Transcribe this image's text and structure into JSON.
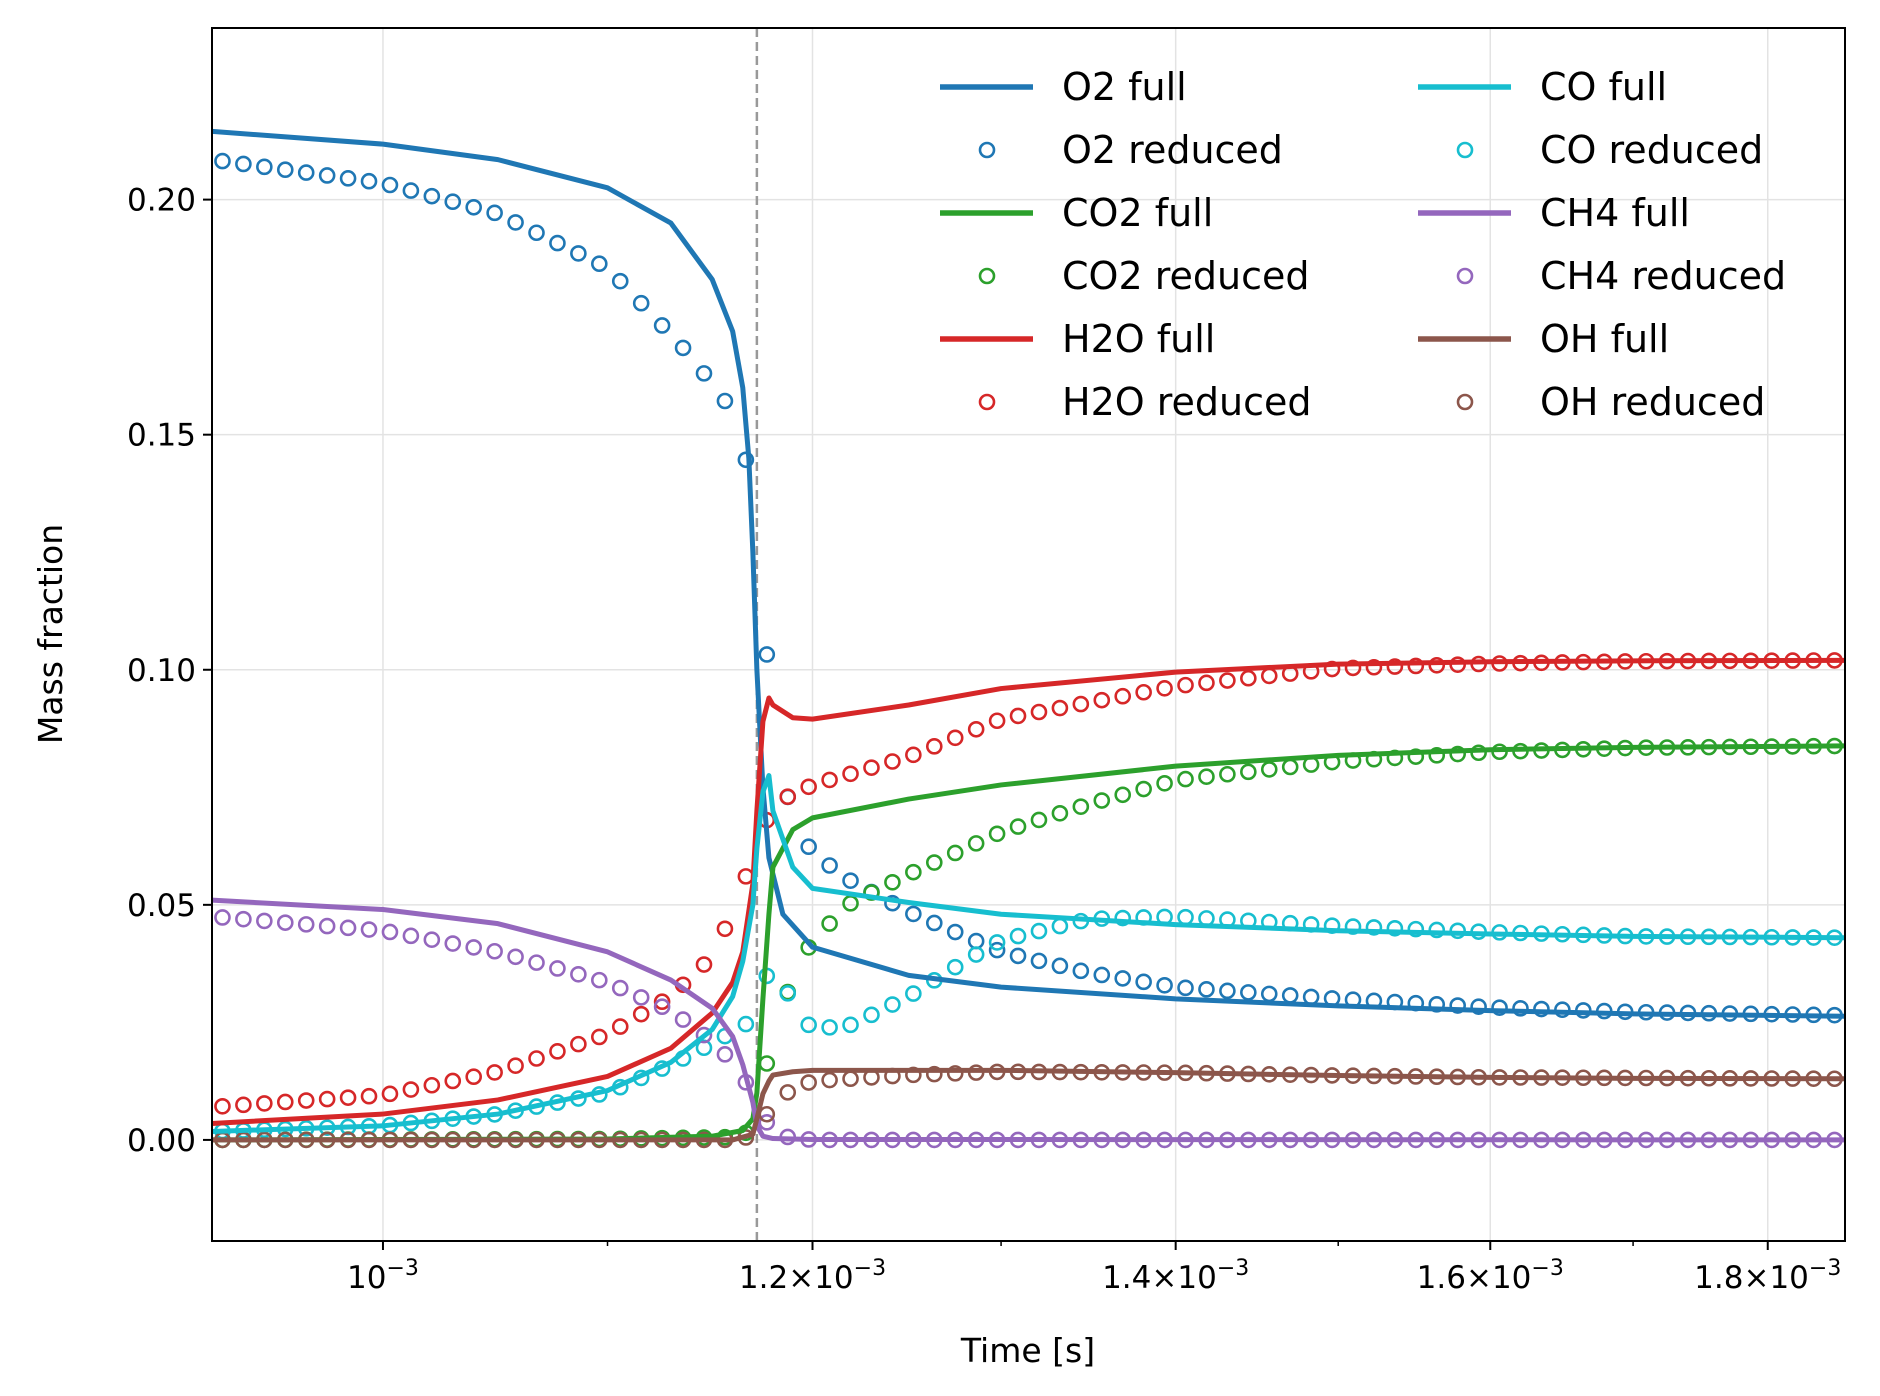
{
  "chart_data": {
    "type": "line",
    "title": "",
    "xlabel": "Time [s]",
    "ylabel": "Mass fraction",
    "xscale": "log",
    "xlim": [
      0.00093,
      0.00186
    ],
    "ylim": [
      -0.0215,
      0.2365
    ],
    "grid": true,
    "legend_position": "top-right",
    "legend_columns": 2,
    "ignition_time": 0.001172,
    "ignition_line_color": "#999999",
    "x_ticks": [
      {
        "value": 0.001,
        "mantissa": "",
        "exponent": "−3"
      },
      {
        "value": 0.0012,
        "mantissa": "1.2",
        "exponent": "−3"
      },
      {
        "value": 0.0014,
        "mantissa": "1.4",
        "exponent": "−3"
      },
      {
        "value": 0.0016,
        "mantissa": "1.6",
        "exponent": "−3"
      },
      {
        "value": 0.0018,
        "mantissa": "1.8",
        "exponent": "−3"
      }
    ],
    "x_tick_times_symbol": "×",
    "x_tick_base": "10",
    "y_ticks": [
      {
        "value": 0.0,
        "label": "0.00"
      },
      {
        "value": 0.05,
        "label": "0.05"
      },
      {
        "value": 0.1,
        "label": "0.10"
      },
      {
        "value": 0.15,
        "label": "0.15"
      },
      {
        "value": 0.2,
        "label": "0.20"
      }
    ],
    "species": [
      {
        "name": "O2",
        "color": "#1f77b4",
        "full_label": "O2 full",
        "reduced_label": "O2 reduced",
        "full": [
          [
            0.00093,
            0.2145
          ],
          [
            0.001,
            0.2118
          ],
          [
            0.00105,
            0.2085
          ],
          [
            0.0011,
            0.2025
          ],
          [
            0.00113,
            0.195
          ],
          [
            0.00115,
            0.183
          ],
          [
            0.00116,
            0.172
          ],
          [
            0.001165,
            0.16
          ],
          [
            0.001168,
            0.145
          ],
          [
            0.00117,
            0.125
          ],
          [
            0.001172,
            0.1
          ],
          [
            0.001175,
            0.075
          ],
          [
            0.001178,
            0.06
          ],
          [
            0.001185,
            0.048
          ],
          [
            0.0012,
            0.041
          ],
          [
            0.00125,
            0.035
          ],
          [
            0.0013,
            0.0325
          ],
          [
            0.0014,
            0.03
          ],
          [
            0.0015,
            0.0285
          ],
          [
            0.0016,
            0.0275
          ],
          [
            0.0017,
            0.0268
          ],
          [
            0.00186,
            0.0263
          ]
        ],
        "reduced": [
          [
            0.00093,
            0.2085
          ],
          [
            0.001,
            0.2035
          ],
          [
            0.00105,
            0.197
          ],
          [
            0.0011,
            0.1855
          ],
          [
            0.00112,
            0.176
          ],
          [
            0.00114,
            0.1665
          ],
          [
            0.00116,
            0.155
          ],
          [
            0.00117,
            0.1392
          ],
          [
            0.00118,
            0.0875
          ],
          [
            0.00119,
            0.068
          ],
          [
            0.0012,
            0.061
          ],
          [
            0.00122,
            0.055
          ],
          [
            0.00125,
            0.0485
          ],
          [
            0.0013,
            0.04
          ],
          [
            0.00135,
            0.0355
          ],
          [
            0.0014,
            0.0325
          ],
          [
            0.0015,
            0.03
          ],
          [
            0.0016,
            0.0282
          ],
          [
            0.0017,
            0.0272
          ],
          [
            0.00186,
            0.0265
          ]
        ]
      },
      {
        "name": "CO2",
        "color": "#2ca02c",
        "full_label": "CO2 full",
        "reduced_label": "CO2 reduced",
        "full": [
          [
            0.00093,
            0.0
          ],
          [
            0.0011,
            0.0002
          ],
          [
            0.00115,
            0.0008
          ],
          [
            0.001165,
            0.002
          ],
          [
            0.00117,
            0.0045
          ],
          [
            0.001172,
            0.01
          ],
          [
            0.001175,
            0.03
          ],
          [
            0.001178,
            0.048
          ],
          [
            0.00118,
            0.058
          ],
          [
            0.00119,
            0.066
          ],
          [
            0.0012,
            0.0685
          ],
          [
            0.00125,
            0.0725
          ],
          [
            0.0013,
            0.0755
          ],
          [
            0.0014,
            0.0795
          ],
          [
            0.0015,
            0.0818
          ],
          [
            0.0016,
            0.083
          ],
          [
            0.0017,
            0.0835
          ],
          [
            0.00186,
            0.0838
          ]
        ],
        "reduced": [
          [
            0.00093,
            0.0
          ],
          [
            0.0011,
            0.0002
          ],
          [
            0.00116,
            0.0006
          ],
          [
            0.00117,
            0.002
          ],
          [
            0.00118,
            0.0225
          ],
          [
            0.00119,
            0.0345
          ],
          [
            0.0012,
            0.0425
          ],
          [
            0.00122,
            0.0505
          ],
          [
            0.00125,
            0.0565
          ],
          [
            0.0013,
            0.0655
          ],
          [
            0.00135,
            0.0715
          ],
          [
            0.0014,
            0.0765
          ],
          [
            0.0015,
            0.0805
          ],
          [
            0.0016,
            0.0825
          ],
          [
            0.0017,
            0.0834
          ],
          [
            0.00186,
            0.0838
          ]
        ]
      },
      {
        "name": "H2O",
        "color": "#d62728",
        "full_label": "H2O full",
        "reduced_label": "H2O reduced",
        "full": [
          [
            0.00093,
            0.0035
          ],
          [
            0.001,
            0.0055
          ],
          [
            0.00105,
            0.0085
          ],
          [
            0.0011,
            0.0135
          ],
          [
            0.00113,
            0.0195
          ],
          [
            0.00115,
            0.027
          ],
          [
            0.00116,
            0.0335
          ],
          [
            0.001165,
            0.04
          ],
          [
            0.00117,
            0.0545
          ],
          [
            0.001172,
            0.07
          ],
          [
            0.001175,
            0.089
          ],
          [
            0.001178,
            0.094
          ],
          [
            0.00118,
            0.0925
          ],
          [
            0.00119,
            0.0898
          ],
          [
            0.0012,
            0.0895
          ],
          [
            0.00125,
            0.0925
          ],
          [
            0.0013,
            0.096
          ],
          [
            0.0014,
            0.0995
          ],
          [
            0.0015,
            0.1012
          ],
          [
            0.0016,
            0.1017
          ],
          [
            0.0017,
            0.1019
          ],
          [
            0.00186,
            0.102
          ]
        ],
        "reduced": [
          [
            0.00093,
            0.007
          ],
          [
            0.001,
            0.0095
          ],
          [
            0.00105,
            0.0145
          ],
          [
            0.0011,
            0.0225
          ],
          [
            0.00113,
            0.0305
          ],
          [
            0.00115,
            0.039
          ],
          [
            0.00116,
            0.0485
          ],
          [
            0.00118,
            0.0715
          ],
          [
            0.0012,
            0.0755
          ],
          [
            0.00125,
            0.0815
          ],
          [
            0.0013,
            0.0895
          ],
          [
            0.0014,
            0.0965
          ],
          [
            0.0015,
            0.1003
          ],
          [
            0.0016,
            0.1013
          ],
          [
            0.0017,
            0.1018
          ],
          [
            0.00186,
            0.102
          ]
        ]
      },
      {
        "name": "CO",
        "color": "#17becf",
        "full_label": "CO full",
        "reduced_label": "CO reduced",
        "full": [
          [
            0.00093,
            0.0018
          ],
          [
            0.001,
            0.003
          ],
          [
            0.00105,
            0.0055
          ],
          [
            0.0011,
            0.0105
          ],
          [
            0.00113,
            0.0165
          ],
          [
            0.00115,
            0.0235
          ],
          [
            0.00116,
            0.0305
          ],
          [
            0.001165,
            0.038
          ],
          [
            0.00117,
            0.05
          ],
          [
            0.001172,
            0.062
          ],
          [
            0.001175,
            0.074
          ],
          [
            0.001178,
            0.0775
          ],
          [
            0.00118,
            0.07
          ],
          [
            0.00119,
            0.058
          ],
          [
            0.0012,
            0.0535
          ],
          [
            0.00125,
            0.0505
          ],
          [
            0.0013,
            0.048
          ],
          [
            0.0014,
            0.0458
          ],
          [
            0.0015,
            0.0445
          ],
          [
            0.0016,
            0.0438
          ],
          [
            0.0017,
            0.0433
          ],
          [
            0.00186,
            0.043
          ]
        ],
        "reduced": [
          [
            0.00093,
            0.0018
          ],
          [
            0.001,
            0.003
          ],
          [
            0.00105,
            0.0055
          ],
          [
            0.0011,
            0.01
          ],
          [
            0.00113,
            0.016
          ],
          [
            0.00115,
            0.0205
          ],
          [
            0.00117,
            0.0255
          ],
          [
            0.00118,
            0.039
          ],
          [
            0.00119,
            0.0285
          ],
          [
            0.0012,
            0.0235
          ],
          [
            0.00122,
            0.0245
          ],
          [
            0.00125,
            0.0305
          ],
          [
            0.00128,
            0.038
          ],
          [
            0.0013,
            0.0425
          ],
          [
            0.00135,
            0.047
          ],
          [
            0.0014,
            0.0475
          ],
          [
            0.0015,
            0.0455
          ],
          [
            0.0016,
            0.0442
          ],
          [
            0.0017,
            0.0433
          ],
          [
            0.00186,
            0.043
          ]
        ]
      },
      {
        "name": "CH4",
        "color": "#9467bd",
        "full_label": "CH4 full",
        "reduced_label": "CH4 reduced",
        "full": [
          [
            0.00093,
            0.051
          ],
          [
            0.001,
            0.049
          ],
          [
            0.00105,
            0.046
          ],
          [
            0.0011,
            0.04
          ],
          [
            0.00113,
            0.034
          ],
          [
            0.00115,
            0.028
          ],
          [
            0.00116,
            0.022
          ],
          [
            0.001165,
            0.016
          ],
          [
            0.00117,
            0.008
          ],
          [
            0.001172,
            0.003
          ],
          [
            0.001175,
            0.0008
          ],
          [
            0.00118,
            0.0003
          ],
          [
            0.0012,
            0.0001
          ],
          [
            0.00186,
            0.0
          ]
        ],
        "reduced": [
          [
            0.00093,
            0.0475
          ],
          [
            0.001,
            0.0445
          ],
          [
            0.00105,
            0.04
          ],
          [
            0.0011,
            0.0335
          ],
          [
            0.00113,
            0.0275
          ],
          [
            0.00115,
            0.021
          ],
          [
            0.00116,
            0.0165
          ],
          [
            0.00117,
            0.01
          ],
          [
            0.00118,
            0.001
          ],
          [
            0.0012,
            0.0
          ],
          [
            0.00186,
            0.0
          ]
        ]
      },
      {
        "name": "OH",
        "color": "#8c564b",
        "full_label": "OH full",
        "reduced_label": "OH reduced",
        "full": [
          [
            0.00093,
            0.0
          ],
          [
            0.00116,
            0.0
          ],
          [
            0.00117,
            0.0012
          ],
          [
            0.001172,
            0.0045
          ],
          [
            0.001175,
            0.0098
          ],
          [
            0.001178,
            0.0125
          ],
          [
            0.00118,
            0.0138
          ],
          [
            0.00119,
            0.0145
          ],
          [
            0.0012,
            0.0148
          ],
          [
            0.0013,
            0.0148
          ],
          [
            0.0014,
            0.0143
          ],
          [
            0.0015,
            0.0137
          ],
          [
            0.0016,
            0.0133
          ],
          [
            0.0017,
            0.0131
          ],
          [
            0.00186,
            0.013
          ]
        ],
        "reduced": [
          [
            0.00093,
            0.0
          ],
          [
            0.00116,
            0.0
          ],
          [
            0.00117,
            0.0008
          ],
          [
            0.00118,
            0.0075
          ],
          [
            0.00119,
            0.011
          ],
          [
            0.0012,
            0.0125
          ],
          [
            0.00125,
            0.0138
          ],
          [
            0.0013,
            0.0145
          ],
          [
            0.0014,
            0.0143
          ],
          [
            0.0015,
            0.0137
          ],
          [
            0.0016,
            0.0133
          ],
          [
            0.00186,
            0.013
          ]
        ]
      }
    ]
  }
}
